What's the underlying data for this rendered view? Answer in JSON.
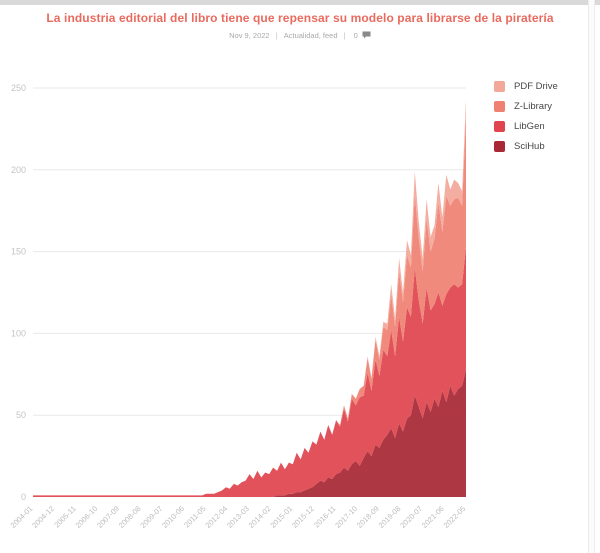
{
  "page": {
    "title": "La industria editorial del libro tiene que repensar su modelo para librarse de la piratería",
    "meta": {
      "date": "Nov 9, 2022",
      "separator": "|",
      "categories": "Actualidad, feed",
      "comments_count": "0"
    }
  },
  "chart_data": {
    "type": "area",
    "stacked": true,
    "title": "",
    "xlabel": "",
    "ylabel": "",
    "x_start": "2004-01",
    "x_end": "2022-05",
    "sample_month_step": 2,
    "x_tick_labels": [
      "2004-01",
      "2004-12",
      "2005-11",
      "2006-10",
      "2007-09",
      "2008-08",
      "2009-07",
      "2010-06",
      "2011-05",
      "2012-04",
      "2013-03",
      "2014-02",
      "2015-01",
      "2015-12",
      "2016-11",
      "2017-10",
      "2018-09",
      "2019-08",
      "2020-07",
      "2021-06",
      "2022-05"
    ],
    "x_tick_month_index": [
      0,
      11,
      22,
      33,
      44,
      55,
      66,
      77,
      88,
      99,
      110,
      121,
      132,
      143,
      154,
      165,
      176,
      187,
      198,
      209,
      220
    ],
    "y_ticks": [
      0,
      50,
      100,
      150,
      200,
      250
    ],
    "ylim": [
      0,
      250
    ],
    "grid": true,
    "legend_position": "top-right",
    "legend_order": [
      "PDF Drive",
      "Z-Library",
      "LibGen",
      "SciHub"
    ],
    "series": [
      {
        "name": "SciHub",
        "color": "#a82836",
        "values": [
          0,
          0,
          0,
          0,
          0,
          0,
          0,
          0,
          0,
          0,
          0,
          0,
          0,
          0,
          0,
          0,
          0,
          0,
          0,
          0,
          0,
          0,
          0,
          0,
          0,
          0,
          0,
          0,
          0,
          0,
          0,
          0,
          0,
          0,
          0,
          0,
          0,
          0,
          0,
          0,
          0,
          0,
          0,
          0,
          0,
          0,
          0,
          0,
          0,
          0,
          0,
          0,
          0,
          0,
          0,
          0,
          0,
          0,
          0,
          0,
          0,
          0,
          1,
          1,
          1,
          2,
          2,
          3,
          3,
          4,
          5,
          6,
          8,
          10,
          9,
          12,
          11,
          14,
          15,
          18,
          16,
          20,
          22,
          19,
          24,
          28,
          25,
          32,
          30,
          35,
          38,
          42,
          36,
          45,
          40,
          48,
          50,
          62,
          55,
          48,
          58,
          52,
          60,
          55,
          65,
          58,
          68,
          62,
          66,
          68,
          78
        ]
      },
      {
        "name": "LibGen",
        "color": "#e0454f",
        "values": [
          1,
          1,
          1,
          1,
          1,
          1,
          1,
          1,
          1,
          1,
          1,
          1,
          1,
          1,
          1,
          1,
          1,
          1,
          1,
          1,
          1,
          1,
          1,
          1,
          1,
          1,
          1,
          1,
          1,
          1,
          1,
          1,
          1,
          1,
          1,
          1,
          1,
          1,
          1,
          1,
          1,
          1,
          1,
          1,
          2,
          2,
          2,
          3,
          4,
          6,
          5,
          8,
          7,
          9,
          10,
          14,
          11,
          16,
          12,
          15,
          14,
          18,
          15,
          20,
          16,
          19,
          18,
          24,
          20,
          26,
          22,
          28,
          24,
          30,
          26,
          32,
          27,
          33,
          28,
          36,
          30,
          40,
          34,
          42,
          38,
          48,
          40,
          52,
          44,
          55,
          48,
          60,
          50,
          65,
          55,
          68,
          60,
          78,
          65,
          58,
          70,
          62,
          58,
          70,
          52,
          66,
          60,
          68,
          62,
          62,
          75
        ]
      },
      {
        "name": "Z-Library",
        "color": "#ef8172",
        "values": [
          0,
          0,
          0,
          0,
          0,
          0,
          0,
          0,
          0,
          0,
          0,
          0,
          0,
          0,
          0,
          0,
          0,
          0,
          0,
          0,
          0,
          0,
          0,
          0,
          0,
          0,
          0,
          0,
          0,
          0,
          0,
          0,
          0,
          0,
          0,
          0,
          0,
          0,
          0,
          0,
          0,
          0,
          0,
          0,
          0,
          0,
          0,
          0,
          0,
          0,
          0,
          0,
          0,
          0,
          0,
          0,
          0,
          0,
          0,
          0,
          0,
          0,
          0,
          0,
          0,
          0,
          0,
          0,
          0,
          0,
          0,
          0,
          0,
          0,
          0,
          0,
          0,
          0,
          1,
          2,
          2,
          3,
          4,
          5,
          6,
          9,
          7,
          12,
          10,
          14,
          16,
          22,
          18,
          28,
          24,
          32,
          30,
          45,
          38,
          32,
          42,
          36,
          40,
          55,
          45,
          60,
          50,
          52,
          55,
          48,
          80
        ]
      },
      {
        "name": "PDF Drive",
        "color": "#f3a89a",
        "values": [
          0,
          0,
          0,
          0,
          0,
          0,
          0,
          0,
          0,
          0,
          0,
          0,
          0,
          0,
          0,
          0,
          0,
          0,
          0,
          0,
          0,
          0,
          0,
          0,
          0,
          0,
          0,
          0,
          0,
          0,
          0,
          0,
          0,
          0,
          0,
          0,
          0,
          0,
          0,
          0,
          0,
          0,
          0,
          0,
          0,
          0,
          0,
          0,
          0,
          0,
          0,
          0,
          0,
          0,
          0,
          0,
          0,
          0,
          0,
          0,
          0,
          0,
          0,
          0,
          0,
          0,
          0,
          0,
          0,
          0,
          0,
          0,
          0,
          0,
          0,
          0,
          0,
          0,
          0,
          0,
          0,
          0,
          0,
          0,
          0,
          1,
          1,
          2,
          2,
          3,
          4,
          6,
          5,
          8,
          6,
          9,
          8,
          14,
          10,
          8,
          12,
          9,
          8,
          12,
          9,
          13,
          10,
          12,
          9,
          9,
          10
        ]
      }
    ]
  }
}
